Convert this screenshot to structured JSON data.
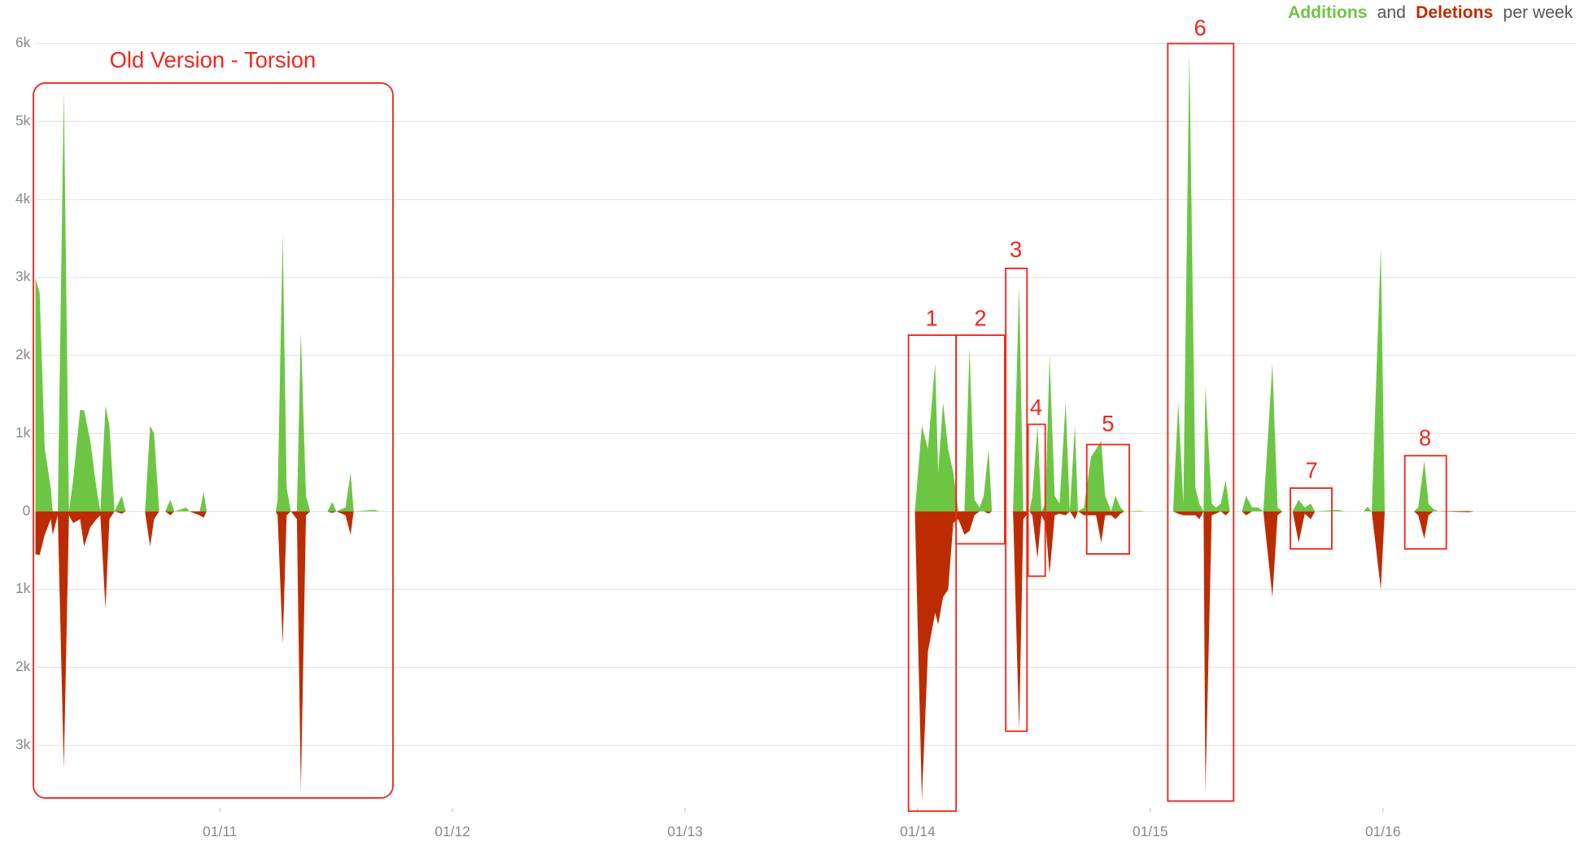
{
  "chart_data": {
    "type": "area",
    "legend_connector": "and",
    "legend_suffix": "per week",
    "x": [
      2010.207,
      2010.225,
      2010.247,
      2010.273,
      2010.281,
      2010.303,
      2010.329,
      2010.351,
      2010.369,
      2010.399,
      2010.416,
      2010.443,
      2010.469,
      2010.486,
      2010.508,
      2010.525,
      2010.547,
      2010.578,
      2010.595,
      2010.678,
      2010.7,
      2010.717,
      2010.739,
      2010.765,
      2010.787,
      2010.804,
      2010.856,
      2010.869,
      2010.913,
      2010.93,
      2010.943,
      2011.24,
      2011.248,
      2011.27,
      2011.287,
      2011.305,
      2011.331,
      2011.348,
      2011.37,
      2011.388,
      2011.462,
      2011.483,
      2011.501,
      2011.54,
      2011.562,
      2011.575,
      2011.666,
      2011.688,
      2013.988,
      2014.018,
      2014.044,
      2014.075,
      2014.088,
      2014.109,
      2014.131,
      2014.153,
      2014.175,
      2014.201,
      2014.223,
      2014.244,
      2014.266,
      2014.284,
      2014.305,
      2014.319,
      2014.41,
      2014.436,
      2014.454,
      2014.48,
      2014.493,
      2014.515,
      2014.532,
      2014.549,
      2014.567,
      2014.589,
      2014.61,
      2014.636,
      2014.654,
      2014.676,
      2014.689,
      2014.715,
      2014.745,
      2014.767,
      2014.789,
      2014.806,
      2014.832,
      2014.85,
      2014.872,
      2014.889,
      2014.954,
      2014.976,
      2015.098,
      2015.12,
      2015.142,
      2015.168,
      2015.194,
      2015.211,
      2015.229,
      2015.237,
      2015.264,
      2015.281,
      2015.303,
      2015.324,
      2015.342,
      2015.394,
      2015.412,
      2015.438,
      2015.464,
      2015.486,
      2015.525,
      2015.547,
      2015.568,
      2015.612,
      2015.638,
      2015.664,
      2015.69,
      2015.708,
      2015.804,
      2015.838,
      2015.917,
      2015.934,
      2015.952,
      2015.991,
      2016.008,
      2016.134,
      2016.152,
      2016.178,
      2016.196,
      2016.217,
      2016.239,
      2016.37,
      2016.391,
      2016.478
    ],
    "series": [
      {
        "name": "Additions",
        "color": "#6cc644",
        "values": [
          3000,
          2800,
          800,
          300,
          0,
          0,
          5400,
          0,
          400,
          1300,
          1300,
          900,
          300,
          0,
          1350,
          1100,
          0,
          200,
          0,
          0,
          1100,
          1000,
          0,
          0,
          150,
          0,
          50,
          0,
          0,
          250,
          0,
          0,
          150,
          3550,
          300,
          0,
          0,
          2300,
          200,
          0,
          0,
          120,
          0,
          50,
          500,
          0,
          20,
          0,
          0,
          1100,
          800,
          1900,
          500,
          1400,
          800,
          500,
          0,
          0,
          2100,
          150,
          50,
          200,
          800,
          0,
          0,
          2900,
          0,
          0,
          200,
          1100,
          0,
          100,
          2000,
          200,
          100,
          1400,
          0,
          1100,
          0,
          50,
          700,
          800,
          900,
          200,
          0,
          200,
          50,
          0,
          10,
          0,
          0,
          1400,
          100,
          5900,
          300,
          100,
          0,
          1600,
          100,
          50,
          100,
          400,
          0,
          0,
          200,
          50,
          50,
          0,
          1900,
          50,
          0,
          0,
          150,
          50,
          100,
          0,
          20,
          0,
          0,
          60,
          0,
          3400,
          0,
          0,
          50,
          650,
          100,
          30,
          0,
          10,
          0,
          0
        ]
      },
      {
        "name": "Deletions",
        "color": "#bd2c00",
        "values": [
          -550,
          -560,
          -300,
          -100,
          -300,
          -50,
          -3300,
          -50,
          -150,
          -100,
          -450,
          -200,
          -100,
          -50,
          -1250,
          -100,
          0,
          -30,
          0,
          0,
          -450,
          -100,
          0,
          0,
          -50,
          0,
          0,
          0,
          -50,
          -80,
          0,
          0,
          -50,
          -1700,
          -50,
          0,
          -100,
          -3600,
          -50,
          0,
          0,
          -20,
          0,
          -50,
          -300,
          0,
          0,
          0,
          0,
          -3700,
          -1800,
          -1300,
          -1450,
          -1100,
          -1000,
          -150,
          -100,
          -300,
          -250,
          -50,
          0,
          0,
          -30,
          0,
          0,
          -2800,
          -100,
          0,
          -50,
          -600,
          -50,
          -150,
          -800,
          -50,
          -30,
          -50,
          0,
          -100,
          0,
          -50,
          -50,
          -50,
          -400,
          -50,
          -50,
          -100,
          -30,
          0,
          0,
          0,
          0,
          -30,
          -50,
          -50,
          -50,
          -100,
          0,
          -3600,
          -50,
          -30,
          0,
          -50,
          0,
          0,
          -50,
          0,
          0,
          0,
          -1100,
          -50,
          0,
          0,
          -400,
          -30,
          -100,
          0,
          0,
          0,
          0,
          0,
          0,
          -1000,
          0,
          0,
          -50,
          -350,
          -50,
          0,
          0,
          -10,
          0,
          0
        ]
      }
    ],
    "xlim": [
      2010.207,
      2016.83
    ],
    "xticks": [
      {
        "value": 2011,
        "label": "01/11"
      },
      {
        "value": 2012,
        "label": "01/12"
      },
      {
        "value": 2013,
        "label": "01/13"
      },
      {
        "value": 2014,
        "label": "01/14"
      },
      {
        "value": 2015,
        "label": "01/15"
      },
      {
        "value": 2016,
        "label": "01/16"
      }
    ],
    "ylim": [
      -3800,
      6200
    ],
    "yticks": [
      {
        "value": 6000,
        "label": "6k"
      },
      {
        "value": 5000,
        "label": "5k"
      },
      {
        "value": 4000,
        "label": "4k"
      },
      {
        "value": 3000,
        "label": "3k"
      },
      {
        "value": 2000,
        "label": "2k"
      },
      {
        "value": 1000,
        "label": "1k"
      },
      0,
      {
        "value": -1000,
        "label": "1k"
      },
      {
        "value": -2000,
        "label": "2k"
      },
      {
        "value": -3000,
        "label": "3k"
      }
    ],
    "grid": true,
    "annotation_color": "#f0281c",
    "annotations": [
      {
        "text": "Old Version - Torsion"
      },
      {
        "text": "1"
      },
      {
        "text": "2"
      },
      {
        "text": "3"
      },
      {
        "text": "4"
      },
      {
        "text": "5"
      },
      {
        "text": "6"
      },
      {
        "text": "7"
      },
      {
        "text": "8"
      }
    ]
  }
}
